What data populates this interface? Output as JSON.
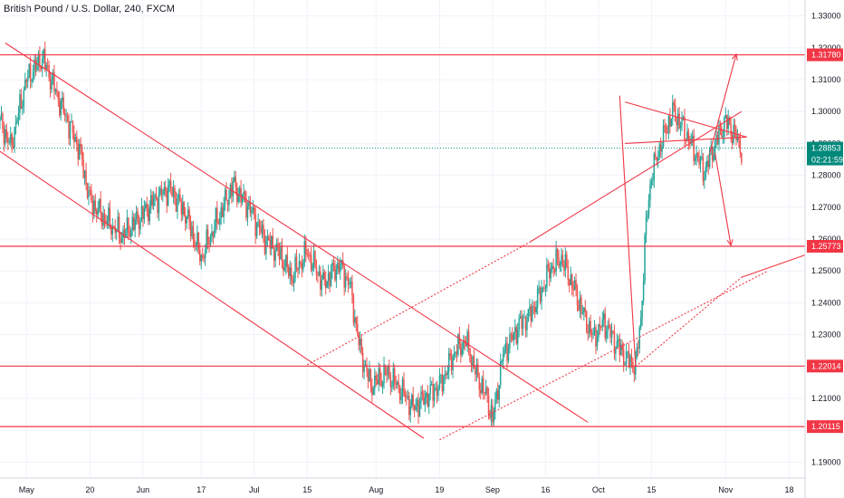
{
  "header": {
    "title": "British Pound / U.S. Dollar, 240, FXCM"
  },
  "colors": {
    "up": "#26a69a",
    "down": "#ef5350",
    "drawing": "#f23645",
    "price_tag": "#00897b",
    "axis_text": "#131722"
  },
  "price_tag": {
    "price": "1.28853",
    "countdown": "02:21:59"
  },
  "chart_data": {
    "type": "candlestick",
    "symbol": "British Pound / U.S. Dollar",
    "interval": "240",
    "source": "FXCM",
    "ylim": [
      1.185,
      1.335
    ],
    "y_ticks": [
      "1.33000",
      "1.32000",
      "1.31000",
      "1.30000",
      "1.29000",
      "1.28000",
      "1.27000",
      "1.26000",
      "1.25000",
      "1.24000",
      "1.23000",
      "1.22000",
      "1.21000",
      "1.20000",
      "1.19000"
    ],
    "x_ticks": [
      {
        "label": "May",
        "idx": 5
      },
      {
        "label": "20",
        "idx": 17
      },
      {
        "label": "Jun",
        "idx": 27
      },
      {
        "label": "17",
        "idx": 38
      },
      {
        "label": "Jul",
        "idx": 48
      },
      {
        "label": "15",
        "idx": 58
      },
      {
        "label": "Aug",
        "idx": 71
      },
      {
        "label": "19",
        "idx": 83
      },
      {
        "label": "Sep",
        "idx": 93
      },
      {
        "label": "16",
        "idx": 103
      },
      {
        "label": "Oct",
        "idx": 113
      },
      {
        "label": "15",
        "idx": 123
      },
      {
        "label": "Nov",
        "idx": 137
      },
      {
        "label": "18",
        "idx": 149
      }
    ],
    "x_domain": [
      0,
      152
    ],
    "horizontal_levels": [
      {
        "price": 1.3178,
        "label": "1.31780"
      },
      {
        "price": 1.25773,
        "label": "1.25773"
      },
      {
        "price": 1.22014,
        "label": "1.22014"
      },
      {
        "price": 1.20115,
        "label": "1.20115"
      }
    ],
    "last_price": 1.28853,
    "anchors": [
      [
        0,
        1.297
      ],
      [
        2,
        1.289
      ],
      [
        5,
        1.31
      ],
      [
        8,
        1.317
      ],
      [
        12,
        1.3
      ],
      [
        15,
        1.288
      ],
      [
        17,
        1.272
      ],
      [
        20,
        1.266
      ],
      [
        23,
        1.261
      ],
      [
        26,
        1.266
      ],
      [
        29,
        1.272
      ],
      [
        32,
        1.276
      ],
      [
        35,
        1.268
      ],
      [
        38,
        1.254
      ],
      [
        40,
        1.262
      ],
      [
        44,
        1.277
      ],
      [
        47,
        1.27
      ],
      [
        50,
        1.26
      ],
      [
        53,
        1.255
      ],
      [
        55,
        1.248
      ],
      [
        58,
        1.256
      ],
      [
        61,
        1.246
      ],
      [
        64,
        1.252
      ],
      [
        66,
        1.246
      ],
      [
        68,
        1.225
      ],
      [
        70,
        1.214
      ],
      [
        73,
        1.218
      ],
      [
        76,
        1.212
      ],
      [
        78,
        1.207
      ],
      [
        80,
        1.21
      ],
      [
        83,
        1.214
      ],
      [
        86,
        1.225
      ],
      [
        88,
        1.228
      ],
      [
        90,
        1.217
      ],
      [
        92,
        1.21
      ],
      [
        93,
        1.203
      ],
      [
        95,
        1.224
      ],
      [
        98,
        1.233
      ],
      [
        100,
        1.236
      ],
      [
        102,
        1.243
      ],
      [
        104,
        1.251
      ],
      [
        106,
        1.254
      ],
      [
        108,
        1.246
      ],
      [
        110,
        1.237
      ],
      [
        112,
        1.229
      ],
      [
        114,
        1.234
      ],
      [
        116,
        1.228
      ],
      [
        118,
        1.223
      ],
      [
        120,
        1.22
      ],
      [
        121,
        1.235
      ],
      [
        122,
        1.265
      ],
      [
        123,
        1.28
      ],
      [
        125,
        1.291
      ],
      [
        127,
        1.3
      ],
      [
        129,
        1.295
      ],
      [
        131,
        1.288
      ],
      [
        133,
        1.281
      ],
      [
        135,
        1.29
      ],
      [
        137,
        1.297
      ],
      [
        139,
        1.292
      ],
      [
        140,
        1.288
      ]
    ],
    "drawings": [
      {
        "type": "line",
        "from": [
          1,
          1.3215
        ],
        "to": [
          111,
          1.2025
        ]
      },
      {
        "type": "line",
        "from": [
          0,
          1.2875
        ],
        "to": [
          80,
          1.1975
        ]
      },
      {
        "type": "line",
        "from": [
          58,
          1.2205
        ],
        "to": [
          100,
          1.259
        ],
        "style": "dotted"
      },
      {
        "type": "line",
        "from": [
          100,
          1.259
        ],
        "to": [
          140,
          1.3
        ]
      },
      {
        "type": "line",
        "from": [
          83,
          1.197
        ],
        "to": [
          145,
          1.25
        ],
        "style": "dotted"
      },
      {
        "type": "line",
        "from": [
          120,
          1.22
        ],
        "to": [
          117,
          1.305
        ]
      },
      {
        "type": "line",
        "from": [
          120,
          1.22
        ],
        "to": [
          140,
          1.248
        ],
        "style": "dotted"
      },
      {
        "type": "line",
        "from": [
          140,
          1.248
        ],
        "to": [
          152,
          1.255
        ]
      },
      {
        "type": "line",
        "from": [
          118,
          1.303
        ],
        "to": [
          141,
          1.292
        ]
      },
      {
        "type": "line",
        "from": [
          118,
          1.29
        ],
        "to": [
          141,
          1.292
        ]
      },
      {
        "type": "arrow",
        "from": [
          134,
          1.287
        ],
        "to": [
          139,
          1.318
        ]
      },
      {
        "type": "arrow",
        "from": [
          135,
          1.287
        ],
        "to": [
          138,
          1.258
        ]
      }
    ]
  }
}
